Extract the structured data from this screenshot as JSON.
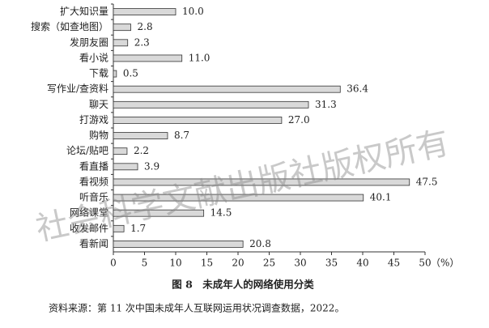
{
  "chart_data": {
    "type": "bar",
    "orientation": "horizontal",
    "categories": [
      "扩大知识量",
      "搜索（如查地图）",
      "发朋友圈",
      "看小说",
      "下载",
      "写作业/查资料",
      "聊天",
      "打游戏",
      "购物",
      "论坛/贴吧",
      "看直播",
      "看视频",
      "听音乐",
      "网络课堂",
      "收发邮件",
      "看新闻"
    ],
    "values": [
      10.0,
      2.8,
      2.3,
      11.0,
      0.5,
      36.4,
      31.3,
      27.0,
      8.7,
      2.2,
      3.9,
      47.5,
      40.1,
      14.5,
      1.7,
      20.8
    ],
    "value_labels": [
      "10.0",
      "2.8",
      "2.3",
      "11.0",
      "0.5",
      "36.4",
      "31.3",
      "27.0",
      "8.7",
      "2.2",
      "3.9",
      "47.5",
      "40.1",
      "14.5",
      "1.7",
      "20.8"
    ],
    "color": "#d9d9d9",
    "xlim": [
      0,
      50
    ],
    "xticks": [
      0,
      5,
      10,
      15,
      20,
      25,
      30,
      35,
      40,
      45,
      50
    ],
    "x_unit": "（%）",
    "title": "图 8　未成年人的网络使用分类",
    "source": "资料来源：第 11 次中国未成年人互联网运用状况调查数据，2022。",
    "watermark": "社会科学文献出版社版权所有"
  }
}
